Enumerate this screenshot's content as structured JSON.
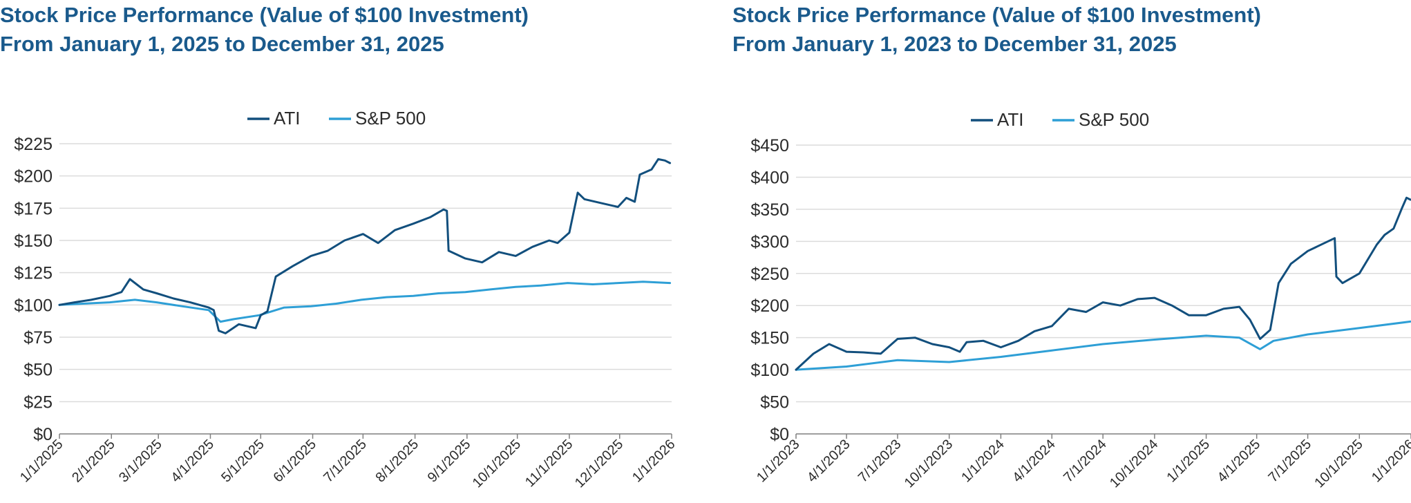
{
  "colors": {
    "title": "#1a5a8c",
    "ati": "#124f7d",
    "sp500": "#2e9fd6",
    "grid": "#dcdcdc",
    "axis": "#7f7f7f",
    "text": "#2b2b2b"
  },
  "chart_data": [
    {
      "type": "line",
      "title": "Stock Price Performance (Value of $100 Investment)",
      "subtitle": "From January 1, 2025 to December 31, 2025",
      "legend_position": "top-center",
      "grid": true,
      "ylim": [
        0,
        225
      ],
      "yticks": [
        "$0",
        "$25",
        "$50",
        "$75",
        "$100",
        "$125",
        "$150",
        "$175",
        "$200",
        "$225"
      ],
      "xlim": [
        "2025-01-01",
        "2026-01-01"
      ],
      "xticks": [
        "1/1/2025",
        "2/1/2025",
        "3/1/2025",
        "4/1/2025",
        "5/1/2025",
        "6/1/2025",
        "7/1/2025",
        "8/1/2025",
        "9/1/2025",
        "10/1/2025",
        "11/1/2025",
        "12/1/2025",
        "1/1/2026"
      ],
      "series": [
        {
          "name": "ATI",
          "points": [
            [
              "2025-01-01",
              100
            ],
            [
              "2025-01-10",
              102
            ],
            [
              "2025-01-20",
              104
            ],
            [
              "2025-01-31",
              107
            ],
            [
              "2025-02-07",
              110
            ],
            [
              "2025-02-12",
              120
            ],
            [
              "2025-02-20",
              112
            ],
            [
              "2025-02-28",
              109
            ],
            [
              "2025-03-10",
              105
            ],
            [
              "2025-03-20",
              102
            ],
            [
              "2025-03-31",
              98
            ],
            [
              "2025-04-03",
              96
            ],
            [
              "2025-04-06",
              80
            ],
            [
              "2025-04-10",
              78
            ],
            [
              "2025-04-18",
              85
            ],
            [
              "2025-04-28",
              82
            ],
            [
              "2025-05-01",
              92
            ],
            [
              "2025-05-05",
              95
            ],
            [
              "2025-05-10",
              122
            ],
            [
              "2025-05-20",
              130
            ],
            [
              "2025-05-31",
              138
            ],
            [
              "2025-06-10",
              142
            ],
            [
              "2025-06-20",
              150
            ],
            [
              "2025-07-01",
              155
            ],
            [
              "2025-07-10",
              148
            ],
            [
              "2025-07-20",
              158
            ],
            [
              "2025-07-31",
              163
            ],
            [
              "2025-08-10",
              168
            ],
            [
              "2025-08-18",
              174
            ],
            [
              "2025-08-20",
              173
            ],
            [
              "2025-08-21",
              142
            ],
            [
              "2025-08-31",
              136
            ],
            [
              "2025-09-10",
              133
            ],
            [
              "2025-09-20",
              141
            ],
            [
              "2025-09-30",
              138
            ],
            [
              "2025-10-10",
              145
            ],
            [
              "2025-10-20",
              150
            ],
            [
              "2025-10-25",
              148
            ],
            [
              "2025-11-01",
              156
            ],
            [
              "2025-11-06",
              187
            ],
            [
              "2025-11-10",
              182
            ],
            [
              "2025-11-20",
              179
            ],
            [
              "2025-11-30",
              176
            ],
            [
              "2025-12-05",
              183
            ],
            [
              "2025-12-10",
              180
            ],
            [
              "2025-12-13",
              201
            ],
            [
              "2025-12-20",
              205
            ],
            [
              "2025-12-24",
              213
            ],
            [
              "2025-12-28",
              212
            ],
            [
              "2025-12-31",
              210
            ]
          ]
        },
        {
          "name": "S&P 500",
          "points": [
            [
              "2025-01-01",
              100
            ],
            [
              "2025-01-15",
              101
            ],
            [
              "2025-01-31",
              102
            ],
            [
              "2025-02-15",
              104
            ],
            [
              "2025-02-28",
              102
            ],
            [
              "2025-03-15",
              99
            ],
            [
              "2025-03-31",
              96
            ],
            [
              "2025-04-07",
              87
            ],
            [
              "2025-04-15",
              89
            ],
            [
              "2025-04-30",
              92
            ],
            [
              "2025-05-15",
              98
            ],
            [
              "2025-05-31",
              99
            ],
            [
              "2025-06-15",
              101
            ],
            [
              "2025-06-30",
              104
            ],
            [
              "2025-07-15",
              106
            ],
            [
              "2025-07-31",
              107
            ],
            [
              "2025-08-15",
              109
            ],
            [
              "2025-08-31",
              110
            ],
            [
              "2025-09-15",
              112
            ],
            [
              "2025-09-30",
              114
            ],
            [
              "2025-10-15",
              115
            ],
            [
              "2025-10-31",
              117
            ],
            [
              "2025-11-15",
              116
            ],
            [
              "2025-11-30",
              117
            ],
            [
              "2025-12-15",
              118
            ],
            [
              "2025-12-31",
              117
            ]
          ]
        }
      ]
    },
    {
      "type": "line",
      "title": "Stock Price Performance (Value of $100 Investment)",
      "subtitle": "From January 1, 2023 to December 31, 2025",
      "legend_position": "top-center",
      "grid": true,
      "ylim": [
        0,
        450
      ],
      "yticks": [
        "$0",
        "$50",
        "$100",
        "$150",
        "$200",
        "$250",
        "$300",
        "$350",
        "$400",
        "$450"
      ],
      "xlim": [
        "2023-01-01",
        "2026-01-01"
      ],
      "xticks": [
        "1/1/2023",
        "4/1/2023",
        "7/1/2023",
        "10/1/2023",
        "1/1/2024",
        "4/1/2024",
        "7/1/2024",
        "10/1/2024",
        "1/1/2025",
        "4/1/2025",
        "7/1/2025",
        "10/1/2025",
        "1/1/2026"
      ],
      "series": [
        {
          "name": "ATI",
          "points": [
            [
              "2023-01-01",
              100
            ],
            [
              "2023-02-01",
              125
            ],
            [
              "2023-03-01",
              140
            ],
            [
              "2023-04-01",
              128
            ],
            [
              "2023-05-01",
              127
            ],
            [
              "2023-06-01",
              125
            ],
            [
              "2023-07-01",
              148
            ],
            [
              "2023-08-01",
              150
            ],
            [
              "2023-09-01",
              140
            ],
            [
              "2023-10-01",
              135
            ],
            [
              "2023-10-20",
              128
            ],
            [
              "2023-11-01",
              143
            ],
            [
              "2023-12-01",
              145
            ],
            [
              "2024-01-01",
              135
            ],
            [
              "2024-02-01",
              145
            ],
            [
              "2024-03-01",
              160
            ],
            [
              "2024-04-01",
              168
            ],
            [
              "2024-05-01",
              195
            ],
            [
              "2024-06-01",
              190
            ],
            [
              "2024-07-01",
              205
            ],
            [
              "2024-08-01",
              200
            ],
            [
              "2024-09-01",
              210
            ],
            [
              "2024-10-01",
              212
            ],
            [
              "2024-11-01",
              200
            ],
            [
              "2024-12-01",
              185
            ],
            [
              "2025-01-01",
              185
            ],
            [
              "2025-02-01",
              195
            ],
            [
              "2025-03-01",
              198
            ],
            [
              "2025-03-20",
              178
            ],
            [
              "2025-04-07",
              148
            ],
            [
              "2025-04-25",
              162
            ],
            [
              "2025-05-10",
              235
            ],
            [
              "2025-06-01",
              265
            ],
            [
              "2025-07-01",
              285
            ],
            [
              "2025-08-18",
              305
            ],
            [
              "2025-08-21",
              245
            ],
            [
              "2025-09-01",
              235
            ],
            [
              "2025-10-01",
              250
            ],
            [
              "2025-11-01",
              295
            ],
            [
              "2025-11-15",
              310
            ],
            [
              "2025-12-01",
              320
            ],
            [
              "2025-12-15",
              350
            ],
            [
              "2025-12-24",
              368
            ],
            [
              "2025-12-31",
              365
            ]
          ]
        },
        {
          "name": "S&P 500",
          "points": [
            [
              "2023-01-01",
              100
            ],
            [
              "2023-04-01",
              105
            ],
            [
              "2023-07-01",
              115
            ],
            [
              "2023-10-01",
              112
            ],
            [
              "2024-01-01",
              120
            ],
            [
              "2024-04-01",
              130
            ],
            [
              "2024-07-01",
              140
            ],
            [
              "2024-10-01",
              147
            ],
            [
              "2025-01-01",
              153
            ],
            [
              "2025-03-01",
              150
            ],
            [
              "2025-04-07",
              132
            ],
            [
              "2025-05-01",
              145
            ],
            [
              "2025-07-01",
              155
            ],
            [
              "2025-10-01",
              165
            ],
            [
              "2025-12-31",
              175
            ]
          ]
        }
      ]
    }
  ]
}
